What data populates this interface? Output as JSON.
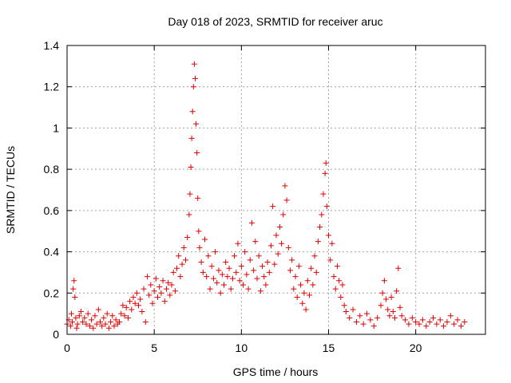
{
  "chart_data": {
    "type": "scatter",
    "title": "Day 018 of 2023, SRMTID for receiver aruc",
    "xlabel": "GPS time / hours",
    "ylabel": "SRMTID / TECUs",
    "xlim": [
      0,
      24
    ],
    "ylim": [
      0,
      1.4
    ],
    "xticks": [
      0,
      5,
      10,
      15,
      20
    ],
    "xtick_labels": [
      "0",
      "5",
      "10",
      "15",
      "20"
    ],
    "yticks": [
      0,
      0.2,
      0.4,
      0.6,
      0.8,
      1.0,
      1.2,
      1.4
    ],
    "ytick_labels": [
      "0",
      "0.2",
      "0.4",
      "0.6",
      "0.8",
      "1",
      "1.2",
      "1.4"
    ],
    "grid": true,
    "marker": "+",
    "color": "#e00000",
    "series": [
      {
        "name": "SRMTID",
        "points": [
          [
            0.0,
            0.05
          ],
          [
            0.1,
            0.07
          ],
          [
            0.2,
            0.04
          ],
          [
            0.25,
            0.1
          ],
          [
            0.3,
            0.06
          ],
          [
            0.35,
            0.22
          ],
          [
            0.4,
            0.26
          ],
          [
            0.45,
            0.18
          ],
          [
            0.5,
            0.08
          ],
          [
            0.55,
            0.03
          ],
          [
            0.6,
            0.05
          ],
          [
            0.7,
            0.09
          ],
          [
            0.8,
            0.11
          ],
          [
            0.9,
            0.06
          ],
          [
            1.0,
            0.08
          ],
          [
            1.1,
            0.05
          ],
          [
            1.2,
            0.1
          ],
          [
            1.3,
            0.04
          ],
          [
            1.4,
            0.07
          ],
          [
            1.5,
            0.03
          ],
          [
            1.6,
            0.09
          ],
          [
            1.7,
            0.05
          ],
          [
            1.8,
            0.12
          ],
          [
            1.9,
            0.06
          ],
          [
            2.0,
            0.04
          ],
          [
            2.1,
            0.08
          ],
          [
            2.2,
            0.05
          ],
          [
            2.3,
            0.1
          ],
          [
            2.4,
            0.03
          ],
          [
            2.5,
            0.06
          ],
          [
            2.6,
            0.09
          ],
          [
            2.7,
            0.04
          ],
          [
            2.8,
            0.07
          ],
          [
            2.9,
            0.05
          ],
          [
            3.0,
            0.06
          ],
          [
            3.1,
            0.1
          ],
          [
            3.2,
            0.14
          ],
          [
            3.3,
            0.09
          ],
          [
            3.4,
            0.13
          ],
          [
            3.5,
            0.08
          ],
          [
            3.6,
            0.16
          ],
          [
            3.7,
            0.12
          ],
          [
            3.8,
            0.18
          ],
          [
            3.9,
            0.15
          ],
          [
            4.0,
            0.2
          ],
          [
            4.1,
            0.14
          ],
          [
            4.2,
            0.17
          ],
          [
            4.3,
            0.11
          ],
          [
            4.4,
            0.22
          ],
          [
            4.5,
            0.06
          ],
          [
            4.6,
            0.28
          ],
          [
            4.7,
            0.19
          ],
          [
            4.8,
            0.24
          ],
          [
            4.9,
            0.15
          ],
          [
            5.0,
            0.21
          ],
          [
            5.1,
            0.27
          ],
          [
            5.2,
            0.18
          ],
          [
            5.3,
            0.23
          ],
          [
            5.4,
            0.2
          ],
          [
            5.5,
            0.26
          ],
          [
            5.6,
            0.16
          ],
          [
            5.7,
            0.22
          ],
          [
            5.8,
            0.25
          ],
          [
            5.9,
            0.19
          ],
          [
            6.0,
            0.24
          ],
          [
            6.1,
            0.3
          ],
          [
            6.2,
            0.21
          ],
          [
            6.3,
            0.32
          ],
          [
            6.4,
            0.38
          ],
          [
            6.5,
            0.28
          ],
          [
            6.6,
            0.34
          ],
          [
            6.7,
            0.42
          ],
          [
            6.8,
            0.36
          ],
          [
            6.9,
            0.47
          ],
          [
            7.0,
            0.58
          ],
          [
            7.05,
            0.68
          ],
          [
            7.1,
            0.81
          ],
          [
            7.15,
            0.95
          ],
          [
            7.2,
            1.08
          ],
          [
            7.25,
            1.2
          ],
          [
            7.3,
            1.31
          ],
          [
            7.35,
            1.24
          ],
          [
            7.4,
            1.02
          ],
          [
            7.45,
            0.88
          ],
          [
            7.5,
            0.66
          ],
          [
            7.55,
            0.5
          ],
          [
            7.6,
            0.42
          ],
          [
            7.7,
            0.35
          ],
          [
            7.8,
            0.3
          ],
          [
            7.9,
            0.46
          ],
          [
            8.0,
            0.28
          ],
          [
            8.1,
            0.38
          ],
          [
            8.2,
            0.22
          ],
          [
            8.3,
            0.33
          ],
          [
            8.4,
            0.27
          ],
          [
            8.5,
            0.4
          ],
          [
            8.6,
            0.25
          ],
          [
            8.7,
            0.31
          ],
          [
            8.8,
            0.2
          ],
          [
            8.9,
            0.29
          ],
          [
            9.0,
            0.24
          ],
          [
            9.1,
            0.35
          ],
          [
            9.2,
            0.28
          ],
          [
            9.3,
            0.32
          ],
          [
            9.4,
            0.22
          ],
          [
            9.5,
            0.27
          ],
          [
            9.6,
            0.38
          ],
          [
            9.7,
            0.3
          ],
          [
            9.8,
            0.44
          ],
          [
            9.9,
            0.26
          ],
          [
            10.0,
            0.33
          ],
          [
            10.1,
            0.24
          ],
          [
            10.2,
            0.4
          ],
          [
            10.3,
            0.29
          ],
          [
            10.4,
            0.22
          ],
          [
            10.5,
            0.36
          ],
          [
            10.6,
            0.54
          ],
          [
            10.7,
            0.31
          ],
          [
            10.8,
            0.45
          ],
          [
            10.9,
            0.27
          ],
          [
            11.0,
            0.38
          ],
          [
            11.1,
            0.21
          ],
          [
            11.2,
            0.33
          ],
          [
            11.3,
            0.28
          ],
          [
            11.4,
            0.24
          ],
          [
            11.5,
            0.35
          ],
          [
            11.6,
            0.3
          ],
          [
            11.7,
            0.43
          ],
          [
            11.8,
            0.62
          ],
          [
            11.9,
            0.34
          ],
          [
            12.0,
            0.48
          ],
          [
            12.1,
            0.39
          ],
          [
            12.2,
            0.52
          ],
          [
            12.3,
            0.44
          ],
          [
            12.4,
            0.58
          ],
          [
            12.5,
            0.72
          ],
          [
            12.6,
            0.65
          ],
          [
            12.7,
            0.42
          ],
          [
            12.8,
            0.31
          ],
          [
            12.9,
            0.36
          ],
          [
            13.0,
            0.22
          ],
          [
            13.1,
            0.28
          ],
          [
            13.2,
            0.18
          ],
          [
            13.3,
            0.33
          ],
          [
            13.4,
            0.24
          ],
          [
            13.5,
            0.15
          ],
          [
            13.6,
            0.2
          ],
          [
            13.7,
            0.12
          ],
          [
            13.8,
            0.26
          ],
          [
            13.9,
            0.19
          ],
          [
            14.0,
            0.32
          ],
          [
            14.1,
            0.24
          ],
          [
            14.2,
            0.38
          ],
          [
            14.3,
            0.3
          ],
          [
            14.4,
            0.45
          ],
          [
            14.5,
            0.52
          ],
          [
            14.6,
            0.58
          ],
          [
            14.7,
            0.68
          ],
          [
            14.8,
            0.78
          ],
          [
            14.85,
            0.83
          ],
          [
            14.9,
            0.62
          ],
          [
            15.0,
            0.48
          ],
          [
            15.1,
            0.36
          ],
          [
            15.2,
            0.44
          ],
          [
            15.3,
            0.28
          ],
          [
            15.4,
            0.22
          ],
          [
            15.5,
            0.33
          ],
          [
            15.6,
            0.26
          ],
          [
            15.7,
            0.18
          ],
          [
            15.8,
            0.24
          ],
          [
            15.9,
            0.14
          ],
          [
            16.0,
            0.11
          ],
          [
            16.2,
            0.08
          ],
          [
            16.4,
            0.12
          ],
          [
            16.6,
            0.06
          ],
          [
            16.8,
            0.09
          ],
          [
            17.0,
            0.05
          ],
          [
            17.2,
            0.1
          ],
          [
            17.4,
            0.07
          ],
          [
            17.6,
            0.04
          ],
          [
            17.8,
            0.08
          ],
          [
            18.0,
            0.14
          ],
          [
            18.1,
            0.2
          ],
          [
            18.2,
            0.26
          ],
          [
            18.3,
            0.17
          ],
          [
            18.4,
            0.12
          ],
          [
            18.5,
            0.09
          ],
          [
            18.6,
            0.18
          ],
          [
            18.7,
            0.11
          ],
          [
            18.8,
            0.08
          ],
          [
            18.9,
            0.21
          ],
          [
            19.0,
            0.32
          ],
          [
            19.1,
            0.13
          ],
          [
            19.2,
            0.09
          ],
          [
            19.4,
            0.07
          ],
          [
            19.6,
            0.05
          ],
          [
            19.8,
            0.08
          ],
          [
            20.0,
            0.06
          ],
          [
            20.2,
            0.05
          ],
          [
            20.4,
            0.07
          ],
          [
            20.6,
            0.04
          ],
          [
            20.8,
            0.06
          ],
          [
            21.0,
            0.08
          ],
          [
            21.2,
            0.05
          ],
          [
            21.4,
            0.07
          ],
          [
            21.6,
            0.04
          ],
          [
            21.8,
            0.06
          ],
          [
            22.0,
            0.09
          ],
          [
            22.2,
            0.05
          ],
          [
            22.4,
            0.07
          ],
          [
            22.6,
            0.04
          ],
          [
            22.8,
            0.06
          ]
        ]
      }
    ]
  }
}
